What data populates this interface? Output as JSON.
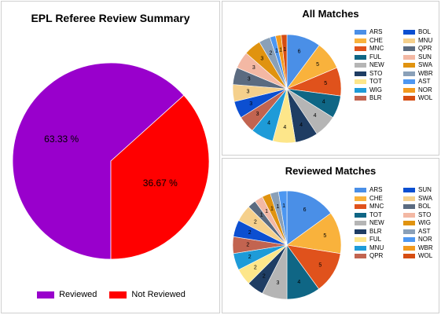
{
  "chart_data": [
    {
      "type": "pie",
      "title": "EPL Referee Review Summary",
      "series": [
        {
          "label": "Reviewed",
          "value": 63.33,
          "color": "#9900cc",
          "display": "63.33 %"
        },
        {
          "label": "Not Reviewed",
          "value": 36.67,
          "color": "#ff0000",
          "display": "36.67 %"
        }
      ],
      "legend_position": "bottom"
    },
    {
      "type": "pie",
      "title": "All Matches",
      "series": [
        {
          "label": "ARS",
          "value": 6,
          "color": "#4a8fe7"
        },
        {
          "label": "CHE",
          "value": 5,
          "color": "#f9b23c"
        },
        {
          "label": "MNC",
          "value": 5,
          "color": "#e0521c"
        },
        {
          "label": "FUL",
          "value": 4,
          "color": "#0f6685"
        },
        {
          "label": "NEW",
          "value": 4,
          "color": "#b5b5b5"
        },
        {
          "label": "STO",
          "value": 4,
          "color": "#1f3d63"
        },
        {
          "label": "TOT",
          "value": 4,
          "color": "#fde68a"
        },
        {
          "label": "WIG",
          "value": 4,
          "color": "#1e9bd8"
        },
        {
          "label": "BLR",
          "value": 3,
          "color": "#c26450"
        },
        {
          "label": "BOL",
          "value": 3,
          "color": "#0c4fd1"
        },
        {
          "label": "MNU",
          "value": 3,
          "color": "#f5d08c"
        },
        {
          "label": "QPR",
          "value": 3,
          "color": "#5b6b80"
        },
        {
          "label": "SUN",
          "value": 3,
          "color": "#f3b8a4"
        },
        {
          "label": "SWA",
          "value": 3,
          "color": "#e0930f"
        },
        {
          "label": "WBR",
          "value": 2,
          "color": "#8aa0b8"
        },
        {
          "label": "AST",
          "value": 1,
          "color": "#4d97f1"
        },
        {
          "label": "NOR",
          "value": 1,
          "color": "#f29a1e"
        },
        {
          "label": "WOL",
          "value": 1,
          "color": "#d64d12"
        }
      ],
      "legend_position": "right"
    },
    {
      "type": "pie",
      "title": "Reviewed Matches",
      "series": [
        {
          "label": "ARS",
          "value": 6,
          "color": "#4a8fe7"
        },
        {
          "label": "CHE",
          "value": 5,
          "color": "#f9b23c"
        },
        {
          "label": "MNC",
          "value": 5,
          "color": "#e0521c"
        },
        {
          "label": "TOT",
          "value": 4,
          "color": "#0f6685"
        },
        {
          "label": "NEW",
          "value": 3,
          "color": "#b5b5b5"
        },
        {
          "label": "BLR",
          "value": 2,
          "color": "#1f3d63"
        },
        {
          "label": "FUL",
          "value": 2,
          "color": "#fde68a"
        },
        {
          "label": "MNU",
          "value": 2,
          "color": "#1e9bd8"
        },
        {
          "label": "QPR",
          "value": 2,
          "color": "#c26450"
        },
        {
          "label": "SUN",
          "value": 2,
          "color": "#0c4fd1"
        },
        {
          "label": "SWA",
          "value": 2,
          "color": "#f5d08c"
        },
        {
          "label": "BOL",
          "value": 1,
          "color": "#5b6b80"
        },
        {
          "label": "STO",
          "value": 1,
          "color": "#f3b8a4"
        },
        {
          "label": "WIG",
          "value": 1,
          "color": "#e0930f"
        },
        {
          "label": "AST",
          "value": 1,
          "color": "#8aa0b8"
        },
        {
          "label": "NOR",
          "value": 1,
          "color": "#4d97f1"
        },
        {
          "label": "WBR",
          "value": 0,
          "color": "#f29a1e"
        },
        {
          "label": "WOL",
          "value": 0,
          "color": "#d64d12"
        }
      ],
      "legend_position": "right"
    }
  ]
}
